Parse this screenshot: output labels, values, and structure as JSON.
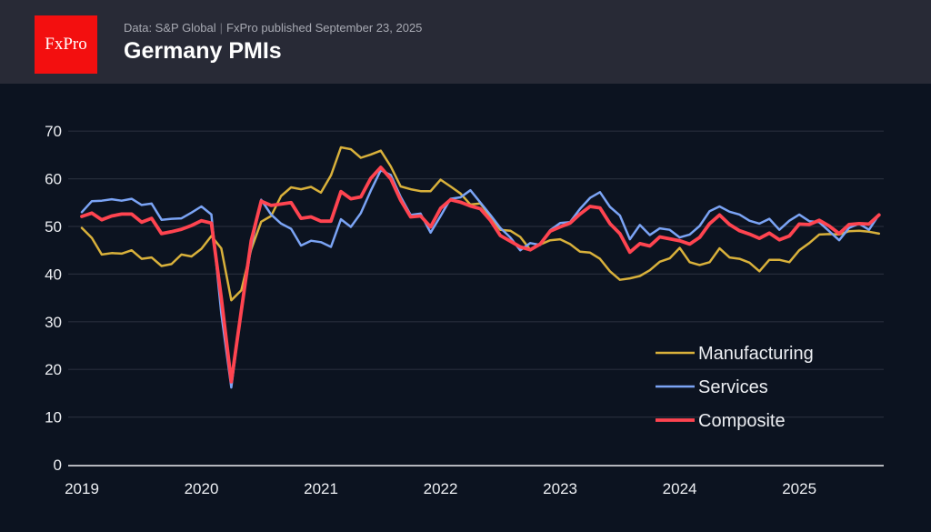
{
  "header": {
    "logo_text": "FxPro",
    "source": "Data: S&P Global",
    "published": "FxPro published September 23, 2025",
    "title": "Germany PMIs"
  },
  "colors": {
    "background": "#0c1320",
    "header": "#282a36",
    "logo": "#f30f0f",
    "manufacturing": "#d9b13b",
    "services": "#7ba4f5",
    "composite": "#ff4450"
  },
  "chart_data": {
    "type": "line",
    "title": "Germany PMIs",
    "x_start": "2019-01",
    "x_frequency": "monthly",
    "x_end": "2025-09",
    "x_ticks": [
      "2019",
      "2020",
      "2021",
      "2022",
      "2023",
      "2024",
      "2025"
    ],
    "y_ticks": [
      0,
      10,
      20,
      30,
      40,
      50,
      60,
      70
    ],
    "ylim": [
      0,
      70
    ],
    "grid": true,
    "legend_position": "bottom-right",
    "series": [
      {
        "name": "Manufacturing",
        "color": "#d9b13b",
        "values": [
          49.7,
          47.6,
          44.1,
          44.4,
          44.3,
          45.0,
          43.2,
          43.5,
          41.7,
          42.1,
          44.1,
          43.7,
          45.3,
          48.0,
          45.4,
          34.5,
          36.6,
          45.2,
          51.0,
          52.2,
          56.4,
          58.2,
          57.8,
          58.3,
          57.1,
          60.7,
          66.6,
          66.2,
          64.4,
          65.1,
          65.9,
          62.6,
          58.4,
          57.8,
          57.4,
          57.4,
          59.8,
          58.4,
          56.9,
          54.6,
          54.8,
          52.0,
          49.3,
          49.1,
          47.8,
          45.1,
          46.2,
          47.1,
          47.3,
          46.3,
          44.7,
          44.5,
          43.2,
          40.6,
          38.8,
          39.1,
          39.6,
          40.8,
          42.6,
          43.3,
          45.5,
          42.5,
          41.9,
          42.5,
          45.4,
          43.5,
          43.2,
          42.4,
          40.6,
          43.0,
          43.0,
          42.5,
          45.0,
          46.5,
          48.3,
          48.4,
          48.3,
          49.0,
          49.1,
          48.9,
          48.5
        ]
      },
      {
        "name": "Services",
        "color": "#7ba4f5",
        "values": [
          53.0,
          55.3,
          55.4,
          55.7,
          55.4,
          55.8,
          54.5,
          54.8,
          51.4,
          51.6,
          51.7,
          52.9,
          54.2,
          52.5,
          31.7,
          16.2,
          32.6,
          45.8,
          55.6,
          52.5,
          50.6,
          49.5,
          46.0,
          47.0,
          46.7,
          45.7,
          51.5,
          49.9,
          52.8,
          57.5,
          61.8,
          60.8,
          56.2,
          52.4,
          52.7,
          48.7,
          52.2,
          55.8,
          56.1,
          57.6,
          55.0,
          52.4,
          49.7,
          47.7,
          45.0,
          46.5,
          46.1,
          49.2,
          50.7,
          50.9,
          53.7,
          56.0,
          57.2,
          54.1,
          52.3,
          47.3,
          50.3,
          48.2,
          49.6,
          49.3,
          47.7,
          48.3,
          50.1,
          53.2,
          54.2,
          53.1,
          52.5,
          51.2,
          50.6,
          51.6,
          49.3,
          51.2,
          52.5,
          51.1,
          50.9,
          49.0,
          47.1,
          49.7,
          50.6,
          49.3,
          52.5
        ]
      },
      {
        "name": "Composite",
        "color": "#ff4450",
        "values": [
          52.1,
          52.8,
          51.4,
          52.2,
          52.6,
          52.6,
          50.9,
          51.7,
          48.5,
          48.9,
          49.4,
          50.2,
          51.2,
          50.7,
          35.0,
          17.4,
          32.3,
          47.0,
          55.3,
          54.4,
          54.7,
          55.0,
          51.7,
          52.0,
          51.1,
          51.1,
          57.3,
          55.8,
          56.2,
          60.1,
          62.4,
          60.0,
          55.5,
          52.0,
          52.2,
          49.9,
          53.8,
          55.6,
          55.1,
          54.3,
          53.7,
          51.3,
          48.1,
          46.9,
          45.7,
          45.1,
          46.3,
          49.0,
          49.9,
          50.7,
          52.6,
          54.2,
          53.9,
          50.6,
          48.5,
          44.6,
          46.4,
          45.9,
          47.8,
          47.4,
          47.0,
          46.3,
          47.7,
          50.6,
          52.4,
          50.4,
          49.1,
          48.4,
          47.5,
          48.6,
          47.2,
          48.0,
          50.5,
          50.4,
          51.3,
          50.1,
          48.5,
          50.4,
          50.6,
          50.5,
          52.4
        ]
      }
    ]
  }
}
